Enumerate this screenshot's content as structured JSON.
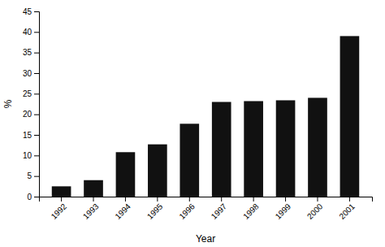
{
  "chart_data": {
    "type": "bar",
    "categories": [
      "1992",
      "1993",
      "1994",
      "1995",
      "1996",
      "1997",
      "1998",
      "1999",
      "2000",
      "2001"
    ],
    "values": [
      2.5,
      4.0,
      10.8,
      12.7,
      17.7,
      23.0,
      23.2,
      23.4,
      24.0,
      39.0
    ],
    "color": "#111111",
    "xlabel": "Year",
    "ylabel": "%",
    "ylim": [
      0,
      45
    ],
    "yticks": [
      0,
      5,
      10,
      15,
      20,
      25,
      30,
      35,
      40,
      45
    ],
    "grid": false
  }
}
